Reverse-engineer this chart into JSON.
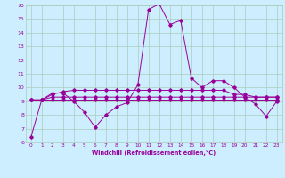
{
  "xlabel": "Windchill (Refroidissement éolien,°C)",
  "bg_color": "#cceeff",
  "grid_color": "#aaccbb",
  "line_color": "#990099",
  "x": [
    0,
    1,
    2,
    3,
    4,
    5,
    6,
    7,
    8,
    9,
    10,
    11,
    12,
    13,
    14,
    15,
    16,
    17,
    18,
    19,
    20,
    21,
    22,
    23
  ],
  "series1": [
    6.4,
    9.1,
    9.6,
    9.6,
    9.0,
    8.2,
    7.1,
    8.0,
    8.6,
    8.9,
    10.2,
    15.7,
    16.1,
    14.6,
    14.9,
    10.7,
    10.0,
    10.5,
    10.5,
    10.0,
    9.3,
    8.8,
    7.9,
    9.0
  ],
  "series2": [
    9.1,
    9.1,
    9.5,
    9.7,
    9.8,
    9.8,
    9.8,
    9.8,
    9.8,
    9.8,
    9.8,
    9.8,
    9.8,
    9.8,
    9.8,
    9.8,
    9.8,
    9.8,
    9.8,
    9.5,
    9.5,
    9.3,
    9.3,
    9.3
  ],
  "series3": [
    9.1,
    9.1,
    9.3,
    9.3,
    9.3,
    9.3,
    9.3,
    9.3,
    9.3,
    9.3,
    9.3,
    9.3,
    9.3,
    9.3,
    9.3,
    9.3,
    9.3,
    9.3,
    9.3,
    9.3,
    9.3,
    9.3,
    9.3,
    9.3
  ],
  "series4": [
    9.1,
    9.1,
    9.1,
    9.1,
    9.1,
    9.1,
    9.1,
    9.1,
    9.1,
    9.1,
    9.1,
    9.1,
    9.1,
    9.1,
    9.1,
    9.1,
    9.1,
    9.1,
    9.1,
    9.1,
    9.1,
    9.1,
    9.1,
    9.1
  ],
  "ylim": [
    6,
    16
  ],
  "xlim": [
    -0.5,
    23.5
  ],
  "yticks": [
    6,
    7,
    8,
    9,
    10,
    11,
    12,
    13,
    14,
    15,
    16
  ],
  "xticks": [
    0,
    1,
    2,
    3,
    4,
    5,
    6,
    7,
    8,
    9,
    10,
    11,
    12,
    13,
    14,
    15,
    16,
    17,
    18,
    19,
    20,
    21,
    22,
    23
  ]
}
